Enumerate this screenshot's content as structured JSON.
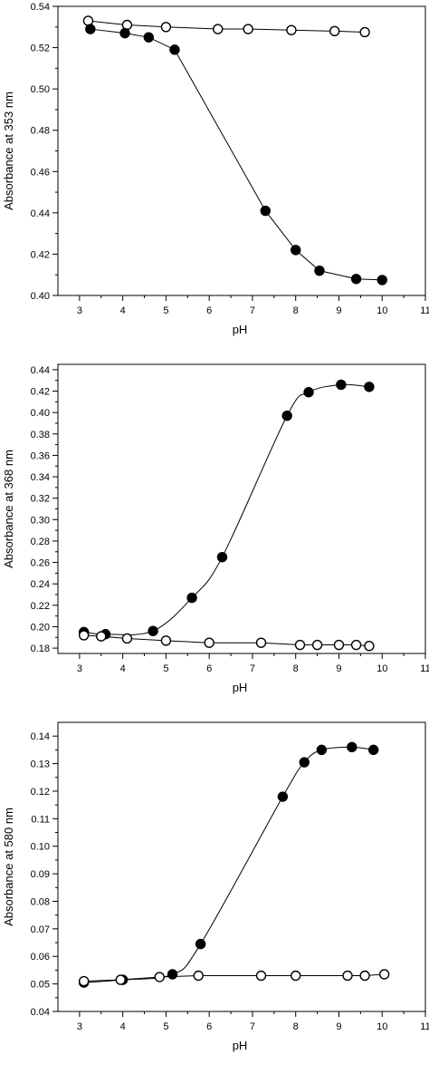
{
  "chart_data": [
    {
      "type": "line",
      "xlabel": "pH",
      "ylabel": "Absorbance at 353 nm",
      "xlim": [
        2.5,
        11
      ],
      "ylim": [
        0.4,
        0.54
      ],
      "x_ticks": [
        3,
        4,
        5,
        6,
        7,
        8,
        9,
        10,
        11
      ],
      "x_tick_labels": [
        "3",
        "4",
        "5",
        "6",
        "7",
        "8",
        "9",
        "10",
        "11"
      ],
      "y_ticks": [
        0.4,
        0.42,
        0.44,
        0.46,
        0.48,
        0.5,
        0.52,
        0.54
      ],
      "y_tick_labels": [
        "0.40",
        "0.42",
        "0.44",
        "0.46",
        "0.48",
        "0.50",
        "0.52",
        "0.54"
      ],
      "grid": false,
      "legend": "none",
      "series": [
        {
          "marker": "open-circle",
          "curve": "straight",
          "x": [
            3.2,
            4.1,
            5.0,
            6.2,
            6.9,
            7.9,
            8.9,
            9.6
          ],
          "y": [
            0.533,
            0.531,
            0.53,
            0.529,
            0.529,
            0.5285,
            0.528,
            0.5275
          ]
        },
        {
          "marker": "filled-circle",
          "curve": "straight",
          "x": [
            3.25,
            4.05,
            4.6,
            5.2,
            7.3,
            8.0,
            8.55,
            9.4,
            10.0
          ],
          "y": [
            0.529,
            0.527,
            0.525,
            0.519,
            0.441,
            0.422,
            0.412,
            0.408,
            0.4075
          ]
        }
      ]
    },
    {
      "type": "line",
      "xlabel": "pH",
      "ylabel": "Absorbance at 368 nm",
      "xlim": [
        2.5,
        11
      ],
      "ylim": [
        0.175,
        0.445
      ],
      "x_ticks": [
        3,
        4,
        5,
        6,
        7,
        8,
        9,
        10,
        11
      ],
      "x_tick_labels": [
        "3",
        "4",
        "5",
        "6",
        "7",
        "8",
        "9",
        "10",
        "11"
      ],
      "y_ticks": [
        0.18,
        0.2,
        0.22,
        0.24,
        0.26,
        0.28,
        0.3,
        0.32,
        0.34,
        0.36,
        0.38,
        0.4,
        0.42,
        0.44
      ],
      "y_tick_labels": [
        "0.18",
        "0.20",
        "0.22",
        "0.24",
        "0.26",
        "0.28",
        "0.30",
        "0.32",
        "0.34",
        "0.36",
        "0.38",
        "0.40",
        "0.42",
        "0.44"
      ],
      "grid": false,
      "legend": "none",
      "series": [
        {
          "marker": "filled-circle",
          "curve": "smooth",
          "x": [
            3.1,
            3.6,
            4.7,
            5.6,
            6.3,
            7.8,
            8.3,
            9.05,
            9.7
          ],
          "y": [
            0.195,
            0.193,
            0.196,
            0.227,
            0.265,
            0.397,
            0.419,
            0.426,
            0.424
          ]
        },
        {
          "marker": "open-circle",
          "curve": "straight",
          "x": [
            3.1,
            3.5,
            4.1,
            5.0,
            6.0,
            7.2,
            8.1,
            8.5,
            9.0,
            9.4,
            9.7
          ],
          "y": [
            0.192,
            0.191,
            0.189,
            0.187,
            0.185,
            0.185,
            0.183,
            0.183,
            0.183,
            0.183,
            0.182
          ]
        }
      ]
    },
    {
      "type": "line",
      "xlabel": "pH",
      "ylabel": "Absorbance at 580 nm",
      "xlim": [
        2.5,
        11
      ],
      "ylim": [
        0.04,
        0.145
      ],
      "x_ticks": [
        3,
        4,
        5,
        6,
        7,
        8,
        9,
        10,
        11
      ],
      "x_tick_labels": [
        "3",
        "4",
        "5",
        "6",
        "7",
        "8",
        "9",
        "10",
        "11"
      ],
      "y_ticks": [
        0.04,
        0.05,
        0.06,
        0.07,
        0.08,
        0.09,
        0.1,
        0.11,
        0.12,
        0.13,
        0.14
      ],
      "y_tick_labels": [
        "0.04",
        "0.05",
        "0.06",
        "0.07",
        "0.08",
        "0.09",
        "0.10",
        "0.11",
        "0.12",
        "0.13",
        "0.14"
      ],
      "grid": false,
      "legend": "none",
      "series": [
        {
          "marker": "filled-circle",
          "curve": "smooth",
          "x": [
            3.1,
            4.0,
            5.15,
            5.8,
            7.7,
            8.2,
            8.6,
            9.3,
            9.8
          ],
          "y": [
            0.0505,
            0.0515,
            0.0535,
            0.0645,
            0.118,
            0.1305,
            0.135,
            0.136,
            0.135
          ]
        },
        {
          "marker": "open-circle",
          "curve": "straight",
          "x": [
            3.1,
            3.95,
            4.85,
            5.75,
            7.2,
            8.0,
            9.2,
            9.6,
            10.05
          ],
          "y": [
            0.051,
            0.0515,
            0.0525,
            0.053,
            0.053,
            0.053,
            0.053,
            0.053,
            0.0535
          ]
        }
      ]
    }
  ]
}
